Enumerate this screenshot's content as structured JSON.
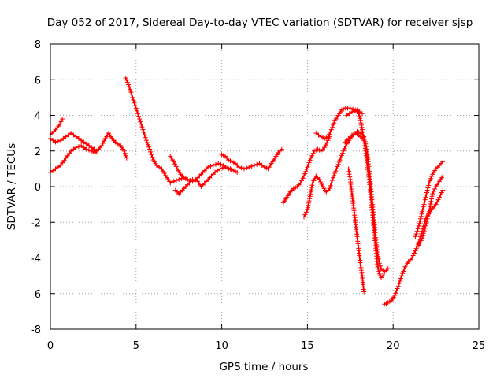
{
  "chart_data": {
    "type": "scatter",
    "title": "Day 052 of 2017, Sidereal Day-to-day VTEC variation (SDTVAR) for receiver sjsp",
    "xlabel": "GPS time / hours",
    "ylabel": "SDTVAR / TECUs",
    "xlim": [
      0,
      25
    ],
    "ylim": [
      -8,
      8
    ],
    "x_ticks": [
      0,
      5,
      10,
      15,
      20,
      25
    ],
    "y_ticks": [
      -8,
      -6,
      -4,
      -2,
      0,
      2,
      4,
      6,
      8
    ],
    "x_tick_labels": [
      "0",
      "5",
      "10",
      "15",
      "20",
      "25"
    ],
    "y_tick_labels": [
      "-8",
      "-6",
      "-4",
      "-2",
      "0",
      "2",
      "4",
      "6",
      "8"
    ],
    "grid": true,
    "marker": "plus",
    "series": [
      {
        "color": "#ff0000",
        "segments": [
          [
            [
              0.0,
              2.9
            ],
            [
              0.2,
              3.1
            ],
            [
              0.4,
              3.3
            ],
            [
              0.55,
              3.5
            ],
            [
              0.7,
              3.8
            ]
          ],
          [
            [
              0.0,
              2.7
            ],
            [
              0.3,
              2.5
            ],
            [
              0.6,
              2.6
            ],
            [
              0.9,
              2.8
            ],
            [
              1.2,
              3.0
            ],
            [
              1.5,
              2.8
            ],
            [
              1.8,
              2.6
            ],
            [
              2.1,
              2.4
            ],
            [
              2.4,
              2.2
            ],
            [
              2.7,
              2.0
            ],
            [
              3.0,
              2.3
            ],
            [
              3.2,
              2.7
            ],
            [
              3.4,
              3.0
            ],
            [
              3.6,
              2.7
            ],
            [
              3.9,
              2.4
            ],
            [
              4.1,
              2.3
            ],
            [
              4.3,
              2.0
            ],
            [
              4.45,
              1.6
            ]
          ],
          [
            [
              0.0,
              0.8
            ],
            [
              0.3,
              1.0
            ],
            [
              0.6,
              1.2
            ],
            [
              0.9,
              1.6
            ],
            [
              1.2,
              2.0
            ],
            [
              1.5,
              2.2
            ],
            [
              1.8,
              2.3
            ],
            [
              2.1,
              2.1
            ],
            [
              2.4,
              2.0
            ],
            [
              2.6,
              1.9
            ],
            [
              2.8,
              2.1
            ]
          ],
          [
            [
              4.4,
              6.1
            ],
            [
              4.6,
              5.6
            ],
            [
              4.8,
              5.0
            ],
            [
              5.0,
              4.4
            ],
            [
              5.2,
              3.8
            ],
            [
              5.4,
              3.2
            ],
            [
              5.6,
              2.6
            ],
            [
              5.8,
              2.1
            ],
            [
              6.0,
              1.5
            ],
            [
              6.2,
              1.2
            ],
            [
              6.5,
              1.0
            ],
            [
              6.8,
              0.5
            ],
            [
              7.0,
              0.2
            ],
            [
              7.2,
              0.3
            ],
            [
              7.5,
              0.4
            ],
            [
              7.8,
              0.5
            ],
            [
              8.0,
              0.4
            ],
            [
              8.3,
              0.3
            ]
          ],
          [
            [
              7.0,
              1.7
            ],
            [
              7.2,
              1.4
            ],
            [
              7.4,
              1.0
            ],
            [
              7.6,
              0.7
            ],
            [
              7.8,
              0.5
            ],
            [
              8.0,
              0.4
            ],
            [
              8.3,
              0.3
            ],
            [
              8.6,
              0.5
            ],
            [
              8.9,
              0.8
            ],
            [
              9.2,
              1.1
            ],
            [
              9.5,
              1.2
            ],
            [
              9.8,
              1.3
            ],
            [
              10.1,
              1.2
            ],
            [
              10.4,
              1.0
            ],
            [
              10.7,
              0.9
            ],
            [
              10.9,
              0.8
            ]
          ],
          [
            [
              7.3,
              -0.2
            ],
            [
              7.5,
              -0.4
            ],
            [
              7.7,
              -0.2
            ],
            [
              7.9,
              0.0
            ],
            [
              8.1,
              0.2
            ],
            [
              8.3,
              0.4
            ],
            [
              8.6,
              0.3
            ],
            [
              8.8,
              0.0
            ],
            [
              9.0,
              0.2
            ],
            [
              9.3,
              0.5
            ],
            [
              9.6,
              0.8
            ],
            [
              9.9,
              1.0
            ],
            [
              10.2,
              1.1
            ],
            [
              10.5,
              1.0
            ]
          ],
          [
            [
              10.0,
              1.8
            ],
            [
              10.2,
              1.7
            ],
            [
              10.4,
              1.5
            ],
            [
              10.6,
              1.4
            ],
            [
              10.8,
              1.3
            ],
            [
              11.0,
              1.1
            ],
            [
              11.3,
              1.0
            ],
            [
              11.6,
              1.1
            ],
            [
              11.9,
              1.2
            ],
            [
              12.2,
              1.3
            ],
            [
              12.5,
              1.1
            ],
            [
              12.7,
              1.0
            ],
            [
              12.9,
              1.3
            ],
            [
              13.1,
              1.6
            ],
            [
              13.3,
              1.9
            ],
            [
              13.5,
              2.1
            ]
          ],
          [
            [
              13.6,
              -0.9
            ],
            [
              13.8,
              -0.6
            ],
            [
              14.0,
              -0.3
            ],
            [
              14.2,
              -0.1
            ],
            [
              14.4,
              0.0
            ],
            [
              14.6,
              0.2
            ],
            [
              14.8,
              0.6
            ],
            [
              15.0,
              1.1
            ],
            [
              15.2,
              1.6
            ],
            [
              15.4,
              2.0
            ],
            [
              15.6,
              2.1
            ],
            [
              15.8,
              2.0
            ],
            [
              16.0,
              2.2
            ],
            [
              16.2,
              2.6
            ],
            [
              16.3,
              2.8
            ]
          ],
          [
            [
              14.8,
              -1.7
            ],
            [
              15.0,
              -1.3
            ],
            [
              15.1,
              -0.8
            ],
            [
              15.2,
              -0.3
            ],
            [
              15.3,
              0.2
            ],
            [
              15.5,
              0.6
            ],
            [
              15.7,
              0.4
            ],
            [
              15.9,
              0.0
            ],
            [
              16.1,
              -0.3
            ],
            [
              16.3,
              -0.1
            ],
            [
              16.5,
              0.5
            ],
            [
              16.7,
              1.0
            ],
            [
              16.9,
              1.5
            ],
            [
              17.1,
              2.0
            ],
            [
              17.3,
              2.4
            ],
            [
              17.5,
              2.7
            ],
            [
              17.7,
              2.9
            ],
            [
              17.9,
              3.1
            ],
            [
              18.1,
              3.0
            ],
            [
              18.3,
              2.8
            ],
            [
              18.4,
              2.4
            ],
            [
              18.5,
              1.8
            ],
            [
              18.6,
              1.0
            ],
            [
              18.7,
              0.0
            ],
            [
              18.8,
              -1.0
            ],
            [
              18.9,
              -2.0
            ],
            [
              19.0,
              -3.0
            ],
            [
              19.1,
              -3.8
            ],
            [
              19.2,
              -4.3
            ],
            [
              19.3,
              -4.6
            ],
            [
              19.5,
              -4.8
            ],
            [
              19.7,
              -4.6
            ]
          ],
          [
            [
              15.5,
              3.0
            ],
            [
              15.8,
              2.8
            ],
            [
              16.0,
              2.7
            ],
            [
              16.2,
              2.8
            ],
            [
              16.4,
              3.2
            ],
            [
              16.6,
              3.7
            ],
            [
              16.8,
              4.0
            ],
            [
              17.0,
              4.3
            ],
            [
              17.2,
              4.4
            ],
            [
              17.5,
              4.4
            ],
            [
              17.8,
              4.3
            ],
            [
              18.0,
              4.1
            ],
            [
              18.1,
              3.7
            ],
            [
              18.2,
              3.2
            ],
            [
              18.3,
              2.6
            ],
            [
              18.4,
              2.0
            ],
            [
              18.5,
              1.2
            ],
            [
              18.6,
              0.4
            ],
            [
              18.7,
              -0.6
            ],
            [
              18.8,
              -1.6
            ],
            [
              18.9,
              -2.6
            ],
            [
              19.0,
              -3.6
            ],
            [
              19.1,
              -4.5
            ],
            [
              19.2,
              -4.9
            ],
            [
              19.3,
              -5.1
            ],
            [
              19.4,
              -5.0
            ]
          ],
          [
            [
              17.2,
              2.5
            ],
            [
              17.4,
              2.7
            ],
            [
              17.6,
              2.9
            ],
            [
              17.8,
              3.0
            ],
            [
              18.0,
              2.9
            ],
            [
              18.2,
              2.7
            ]
          ],
          [
            [
              17.3,
              4.0
            ],
            [
              17.6,
              4.2
            ],
            [
              17.9,
              4.3
            ],
            [
              18.2,
              4.1
            ]
          ],
          [
            [
              17.4,
              1.0
            ],
            [
              17.5,
              0.4
            ],
            [
              17.6,
              -0.4
            ],
            [
              17.7,
              -1.2
            ],
            [
              17.8,
              -2.0
            ],
            [
              17.9,
              -2.8
            ],
            [
              18.0,
              -3.6
            ],
            [
              18.1,
              -4.4
            ],
            [
              18.2,
              -5.0
            ],
            [
              18.25,
              -5.5
            ],
            [
              18.3,
              -5.9
            ]
          ],
          [
            [
              19.5,
              -6.6
            ],
            [
              19.7,
              -6.5
            ],
            [
              19.9,
              -6.4
            ],
            [
              20.1,
              -6.1
            ],
            [
              20.3,
              -5.6
            ],
            [
              20.5,
              -5.0
            ],
            [
              20.7,
              -4.5
            ],
            [
              20.9,
              -4.2
            ],
            [
              21.1,
              -4.0
            ],
            [
              21.3,
              -3.6
            ],
            [
              21.5,
              -3.1
            ],
            [
              21.7,
              -2.5
            ],
            [
              21.9,
              -1.8
            ],
            [
              22.1,
              -1.5
            ],
            [
              22.3,
              -1.2
            ],
            [
              22.5,
              -1.0
            ],
            [
              22.7,
              -0.6
            ],
            [
              22.9,
              -0.2
            ]
          ],
          [
            [
              21.3,
              -2.8
            ],
            [
              21.5,
              -2.2
            ],
            [
              21.7,
              -1.4
            ],
            [
              21.9,
              -0.6
            ],
            [
              22.1,
              0.2
            ],
            [
              22.3,
              0.7
            ],
            [
              22.5,
              1.0
            ],
            [
              22.7,
              1.2
            ],
            [
              22.9,
              1.4
            ]
          ],
          [
            [
              21.5,
              -3.3
            ],
            [
              21.7,
              -2.9
            ],
            [
              21.9,
              -2.2
            ],
            [
              22.1,
              -1.4
            ],
            [
              22.3,
              -0.4
            ],
            [
              22.5,
              0.0
            ],
            [
              22.7,
              0.3
            ],
            [
              22.9,
              0.6
            ]
          ]
        ]
      }
    ]
  }
}
